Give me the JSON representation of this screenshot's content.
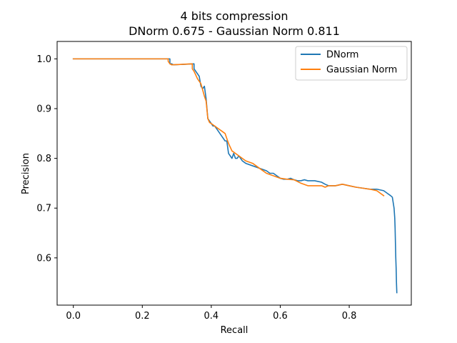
{
  "chart_data": {
    "type": "line",
    "title": "4 bits compression",
    "subtitle": "DNorm 0.675 - Gaussian Norm 0.811",
    "xlabel": "Recall",
    "ylabel": "Precision",
    "xlim": [
      -0.047,
      0.98
    ],
    "ylim": [
      0.505,
      1.035
    ],
    "xticks": [
      0.0,
      0.2,
      0.4,
      0.6,
      0.8
    ],
    "xtick_labels": [
      "0.0",
      "0.2",
      "0.4",
      "0.6",
      "0.8"
    ],
    "yticks": [
      0.6,
      0.7,
      0.8,
      0.9,
      1.0
    ],
    "ytick_labels": [
      "0.6",
      "0.7",
      "0.8",
      "0.9",
      "1.0"
    ],
    "grid": false,
    "legend_position": "top-right",
    "series": [
      {
        "name": "DNorm",
        "color": "#1f77b4",
        "x": [
          0.0,
          0.0,
          0.28,
          0.28,
          0.285,
          0.29,
          0.35,
          0.35,
          0.36,
          0.365,
          0.37,
          0.375,
          0.38,
          0.385,
          0.39,
          0.395,
          0.4,
          0.405,
          0.41,
          0.415,
          0.42,
          0.425,
          0.43,
          0.435,
          0.44,
          0.445,
          0.45,
          0.455,
          0.46,
          0.465,
          0.47,
          0.475,
          0.48,
          0.49,
          0.5,
          0.52,
          0.54,
          0.56,
          0.57,
          0.58,
          0.59,
          0.6,
          0.61,
          0.62,
          0.63,
          0.64,
          0.65,
          0.66,
          0.67,
          0.68,
          0.7,
          0.72,
          0.73,
          0.74,
          0.76,
          0.78,
          0.8,
          0.82,
          0.84,
          0.86,
          0.88,
          0.9,
          0.91,
          0.92,
          0.925,
          0.93,
          0.932,
          0.933,
          0.934,
          0.935,
          0.936,
          0.937,
          0.938
        ],
        "y": [
          1.0,
          1.0,
          1.0,
          0.99,
          0.99,
          0.988,
          0.99,
          0.98,
          0.97,
          0.965,
          0.945,
          0.94,
          0.945,
          0.92,
          0.88,
          0.875,
          0.87,
          0.865,
          0.865,
          0.86,
          0.855,
          0.85,
          0.845,
          0.84,
          0.835,
          0.835,
          0.81,
          0.805,
          0.8,
          0.81,
          0.8,
          0.8,
          0.805,
          0.795,
          0.79,
          0.785,
          0.78,
          0.775,
          0.77,
          0.77,
          0.765,
          0.76,
          0.758,
          0.758,
          0.76,
          0.757,
          0.755,
          0.755,
          0.757,
          0.755,
          0.755,
          0.752,
          0.748,
          0.745,
          0.745,
          0.748,
          0.745,
          0.742,
          0.74,
          0.738,
          0.738,
          0.735,
          0.73,
          0.725,
          0.722,
          0.7,
          0.68,
          0.66,
          0.63,
          0.6,
          0.58,
          0.55,
          0.53
        ]
      },
      {
        "name": "Gaussian Norm",
        "color": "#ff7f0e",
        "x": [
          0.0,
          0.0,
          0.275,
          0.275,
          0.28,
          0.285,
          0.345,
          0.345,
          0.35,
          0.36,
          0.37,
          0.38,
          0.385,
          0.39,
          0.395,
          0.4,
          0.41,
          0.42,
          0.43,
          0.44,
          0.45,
          0.46,
          0.47,
          0.48,
          0.5,
          0.52,
          0.54,
          0.56,
          0.58,
          0.6,
          0.62,
          0.64,
          0.66,
          0.68,
          0.7,
          0.72,
          0.73,
          0.74,
          0.76,
          0.78,
          0.8,
          0.82,
          0.84,
          0.86,
          0.88,
          0.89,
          0.9
        ],
        "y": [
          1.0,
          1.0,
          1.0,
          0.995,
          0.99,
          0.988,
          0.99,
          0.98,
          0.975,
          0.96,
          0.95,
          0.925,
          0.915,
          0.88,
          0.872,
          0.87,
          0.865,
          0.86,
          0.855,
          0.85,
          0.83,
          0.815,
          0.81,
          0.805,
          0.795,
          0.79,
          0.78,
          0.77,
          0.765,
          0.76,
          0.758,
          0.757,
          0.75,
          0.745,
          0.745,
          0.745,
          0.742,
          0.745,
          0.745,
          0.748,
          0.745,
          0.742,
          0.74,
          0.738,
          0.735,
          0.73,
          0.725
        ]
      }
    ]
  }
}
